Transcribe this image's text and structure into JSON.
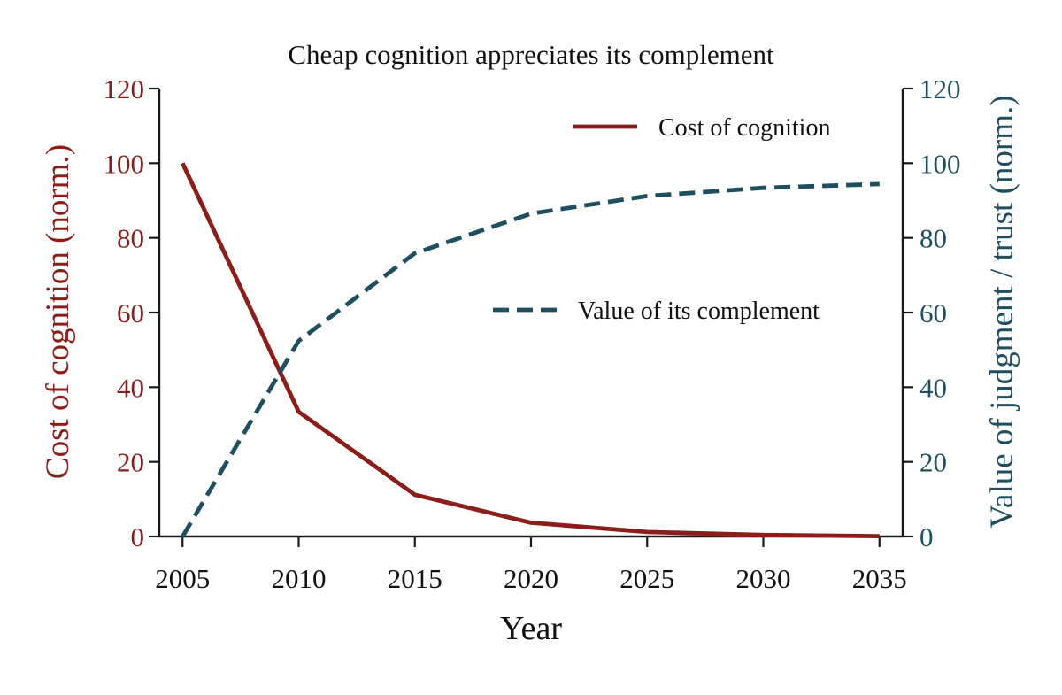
{
  "chart_data": {
    "type": "line",
    "title": "Cheap cognition appreciates its complement",
    "xlabel": "Year",
    "ylabel_left": "Cost of cognition (norm.)",
    "ylabel_right": "Value of judgment / trust (norm.)",
    "x": [
      2005,
      2010,
      2015,
      2020,
      2025,
      2030,
      2035
    ],
    "xlim": [
      2004,
      2036
    ],
    "ylim_left": [
      0,
      120
    ],
    "ylim_right": [
      0,
      120
    ],
    "x_ticks": [
      "2005",
      "2010",
      "2015",
      "2020",
      "2025",
      "2030",
      "2035"
    ],
    "y_ticks_left": [
      "0",
      "20",
      "40",
      "60",
      "80",
      "100",
      "120"
    ],
    "y_ticks_right": [
      "0",
      "20",
      "40",
      "60",
      "80",
      "100",
      "120"
    ],
    "grid": false,
    "series": [
      {
        "name": "Cost of cognition",
        "axis": "left",
        "style": "solid",
        "color": "#8b1e1a",
        "values": [
          100,
          33.4,
          11.2,
          3.7,
          1.2,
          0.4,
          0.1
        ]
      },
      {
        "name": "Value of its complement",
        "axis": "right",
        "style": "dashed",
        "color": "#1f4e5f",
        "values": [
          0,
          52.4,
          75.9,
          86.5,
          91.2,
          93.4,
          94.4
        ]
      }
    ],
    "legend": [
      {
        "label": "Cost of cognition",
        "placement": "upper-right"
      },
      {
        "label": "Value of its complement",
        "placement": "center-right"
      }
    ],
    "colors": {
      "left_axis": "#8b1e1a",
      "right_axis": "#1f4e5f",
      "axis_line": "#1a1a1a"
    }
  }
}
